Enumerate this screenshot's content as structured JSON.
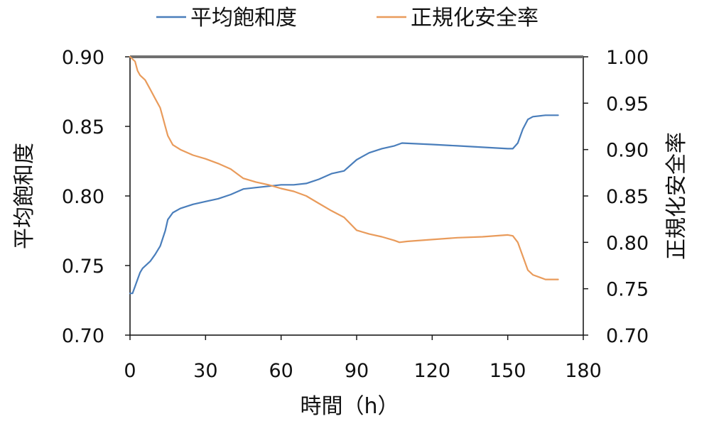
{
  "chart_data": {
    "type": "line",
    "xlabel": "時間（h）",
    "ylabel_left": "平均飽和度",
    "ylabel_right": "正規化安全率",
    "xlim": [
      0,
      180
    ],
    "ylim_left": [
      0.7,
      0.9
    ],
    "ylim_right": [
      0.7,
      1.0
    ],
    "x_ticks": [
      "0",
      "30",
      "60",
      "90",
      "120",
      "150",
      "180"
    ],
    "y_left_ticks": [
      "0.70",
      "0.75",
      "0.80",
      "0.85",
      "0.90"
    ],
    "y_right_ticks": [
      "0.70",
      "0.75",
      "0.80",
      "0.85",
      "0.90",
      "0.95",
      "1.00"
    ],
    "legend_position": "top",
    "grid": false,
    "series": [
      {
        "name": "平均飽和度",
        "axis": "left",
        "color": "#4a7ebb",
        "points": [
          [
            0,
            0.73
          ],
          [
            1,
            0.73
          ],
          [
            2,
            0.735
          ],
          [
            3,
            0.74
          ],
          [
            4,
            0.745
          ],
          [
            5,
            0.748
          ],
          [
            8,
            0.753
          ],
          [
            10,
            0.758
          ],
          [
            12,
            0.764
          ],
          [
            14,
            0.775
          ],
          [
            15,
            0.783
          ],
          [
            17,
            0.788
          ],
          [
            20,
            0.791
          ],
          [
            25,
            0.794
          ],
          [
            30,
            0.796
          ],
          [
            35,
            0.798
          ],
          [
            40,
            0.801
          ],
          [
            45,
            0.805
          ],
          [
            50,
            0.806
          ],
          [
            55,
            0.807
          ],
          [
            60,
            0.808
          ],
          [
            65,
            0.808
          ],
          [
            70,
            0.809
          ],
          [
            75,
            0.812
          ],
          [
            80,
            0.816
          ],
          [
            85,
            0.818
          ],
          [
            90,
            0.826
          ],
          [
            95,
            0.831
          ],
          [
            100,
            0.834
          ],
          [
            105,
            0.836
          ],
          [
            108,
            0.838
          ],
          [
            120,
            0.837
          ],
          [
            130,
            0.836
          ],
          [
            140,
            0.835
          ],
          [
            150,
            0.834
          ],
          [
            152,
            0.834
          ],
          [
            154,
            0.838
          ],
          [
            156,
            0.848
          ],
          [
            158,
            0.855
          ],
          [
            160,
            0.857
          ],
          [
            165,
            0.858
          ],
          [
            170,
            0.858
          ]
        ]
      },
      {
        "name": "正規化安全率",
        "axis": "right",
        "color": "#e99b5b",
        "points": [
          [
            0,
            1.0
          ],
          [
            2,
            0.995
          ],
          [
            3,
            0.985
          ],
          [
            4,
            0.98
          ],
          [
            6,
            0.975
          ],
          [
            8,
            0.965
          ],
          [
            10,
            0.955
          ],
          [
            12,
            0.945
          ],
          [
            13,
            0.935
          ],
          [
            14,
            0.925
          ],
          [
            15,
            0.915
          ],
          [
            17,
            0.905
          ],
          [
            20,
            0.9
          ],
          [
            25,
            0.894
          ],
          [
            30,
            0.89
          ],
          [
            35,
            0.885
          ],
          [
            40,
            0.879
          ],
          [
            45,
            0.869
          ],
          [
            50,
            0.865
          ],
          [
            55,
            0.862
          ],
          [
            60,
            0.858
          ],
          [
            65,
            0.855
          ],
          [
            70,
            0.85
          ],
          [
            75,
            0.842
          ],
          [
            80,
            0.834
          ],
          [
            85,
            0.827
          ],
          [
            90,
            0.813
          ],
          [
            95,
            0.809
          ],
          [
            100,
            0.806
          ],
          [
            105,
            0.802
          ],
          [
            107,
            0.8
          ],
          [
            110,
            0.801
          ],
          [
            120,
            0.803
          ],
          [
            130,
            0.805
          ],
          [
            140,
            0.806
          ],
          [
            150,
            0.808
          ],
          [
            152,
            0.807
          ],
          [
            154,
            0.8
          ],
          [
            156,
            0.785
          ],
          [
            158,
            0.77
          ],
          [
            160,
            0.765
          ],
          [
            165,
            0.76
          ],
          [
            170,
            0.76
          ]
        ]
      }
    ]
  }
}
